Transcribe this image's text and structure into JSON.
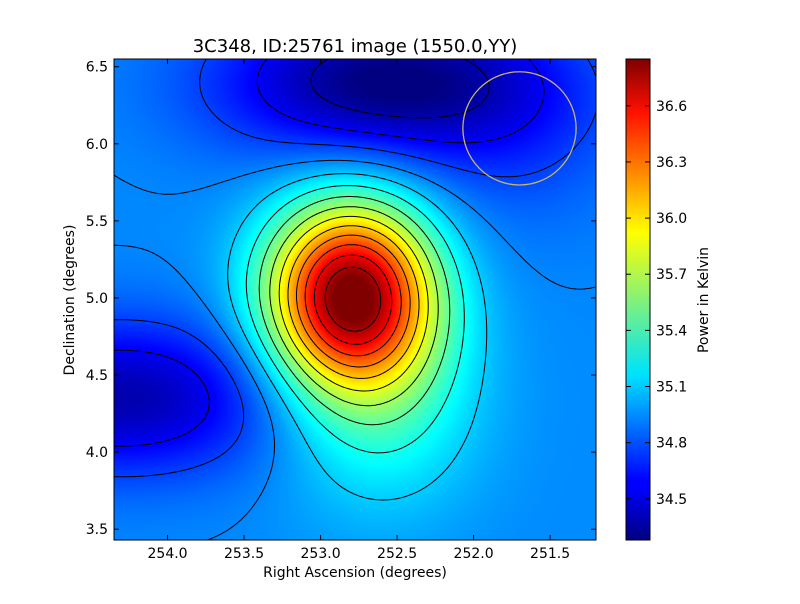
{
  "chart_data": {
    "type": "heatmap",
    "title": "3C348, ID:25761 image (1550.0,YY)",
    "xlabel": "Right Ascension (degrees)",
    "ylabel": "Declination (degrees)",
    "colorbar_label": "Power in Kelvin",
    "xlim": [
      254.35,
      251.2
    ],
    "ylim": [
      3.43,
      6.55
    ],
    "x_ticks": [
      254.0,
      253.5,
      253.0,
      252.5,
      252.0,
      251.5
    ],
    "x_tick_labels": [
      "254.0",
      "253.5",
      "253.0",
      "252.5",
      "252.0",
      "251.5"
    ],
    "y_ticks": [
      3.5,
      4.0,
      4.5,
      5.0,
      5.5,
      6.0,
      6.5
    ],
    "y_tick_labels": [
      "3.5",
      "4.0",
      "4.5",
      "5.0",
      "5.5",
      "6.0",
      "6.5"
    ],
    "colorbar_range": [
      34.28,
      36.85
    ],
    "colorbar_ticks": [
      34.5,
      34.8,
      35.1,
      35.4,
      35.7,
      36.0,
      36.3,
      36.6
    ],
    "colorbar_tick_labels": [
      "34.5",
      "34.8",
      "35.1",
      "35.4",
      "35.7",
      "36.0",
      "36.3",
      "36.6"
    ],
    "colormap": "jet",
    "peak": {
      "ra": 252.8,
      "dec": 5.02,
      "value": 36.85
    },
    "minimum_regions": [
      {
        "ra": 252.6,
        "dec": 6.4,
        "value": 34.28
      },
      {
        "ra": 254.3,
        "dec": 4.35,
        "value": 34.4
      }
    ],
    "contours": true,
    "contour_color": "#000000",
    "marker_circle": {
      "ra": 251.7,
      "dec": 6.1,
      "radius_deg": 0.37,
      "color": "#c8b46a"
    }
  }
}
